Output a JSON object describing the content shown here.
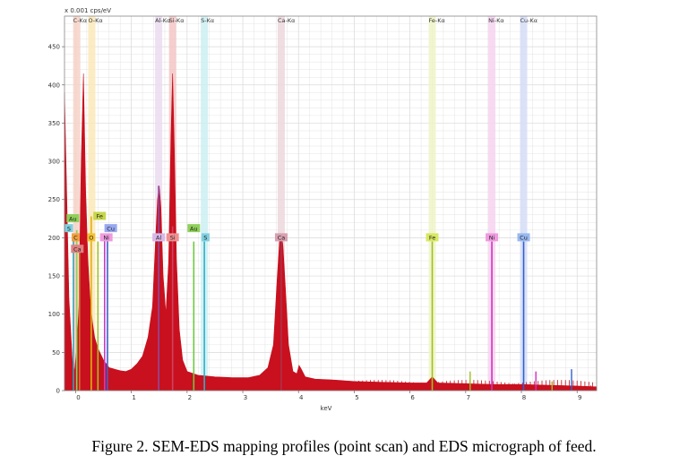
{
  "caption": "Figure 2. SEM-EDS mapping profiles (point scan) and EDS micrograph of feed.",
  "chart_data": {
    "type": "area",
    "y_unit_label": "x 0.001 cps/eV",
    "xlabel": "keV",
    "ylabel": "",
    "xlim": [
      -0.2,
      9.35
    ],
    "ylim": [
      0,
      490
    ],
    "x_ticks": [
      0,
      1,
      2,
      3,
      4,
      5,
      6,
      7,
      8,
      9
    ],
    "y_ticks": [
      0,
      50,
      100,
      150,
      200,
      250,
      300,
      350,
      400,
      450
    ],
    "grid": true,
    "colors": {
      "spectrum": "#c8101e",
      "background": "#ffffff",
      "grid": "#d9d9d9"
    },
    "element_lines": [
      {
        "label": "C-Kα",
        "x": 0.02,
        "color": "#f6d2c8"
      },
      {
        "label": "O-Kα",
        "x": 0.29,
        "color": "#fbe9b8"
      },
      {
        "label": "Al-Kα",
        "x": 1.49,
        "color": "#eadcf0"
      },
      {
        "label": "Si-Kα",
        "x": 1.74,
        "color": "#f3c6c6"
      },
      {
        "label": "S-Kα",
        "x": 2.31,
        "color": "#cdeef2"
      },
      {
        "label": "Ca-Kα",
        "x": 3.69,
        "color": "#ecd7dd"
      },
      {
        "label": "Fe-Kα",
        "x": 6.4,
        "color": "#eef5c8"
      },
      {
        "label": "Ni-Kα",
        "x": 7.47,
        "color": "#f7d2f0"
      },
      {
        "label": "Cu-Kα",
        "x": 8.04,
        "color": "#d5ddf7"
      }
    ],
    "spectrum": {
      "name": "",
      "x": [
        -0.2,
        -0.12,
        -0.06,
        -0.02,
        0.02,
        0.06,
        0.1,
        0.14,
        0.18,
        0.22,
        0.26,
        0.3,
        0.34,
        0.38,
        0.42,
        0.46,
        0.5,
        0.55,
        0.6,
        0.7,
        0.8,
        0.9,
        1.0,
        1.1,
        1.2,
        1.3,
        1.38,
        1.43,
        1.47,
        1.5,
        1.53,
        1.57,
        1.62,
        1.67,
        1.71,
        1.74,
        1.77,
        1.81,
        1.86,
        1.92,
        2.0,
        2.2,
        2.5,
        2.8,
        3.1,
        3.3,
        3.45,
        3.55,
        3.62,
        3.66,
        3.69,
        3.72,
        3.76,
        3.82,
        3.9,
        3.97,
        4.01,
        4.05,
        4.12,
        4.3,
        4.6,
        5.0,
        5.5,
        6.0,
        6.3,
        6.4,
        6.5,
        7.0,
        7.5,
        8.0,
        8.5,
        9.0,
        9.35
      ],
      "y": [
        390,
        120,
        40,
        25,
        55,
        110,
        300,
        415,
        260,
        170,
        120,
        90,
        70,
        60,
        52,
        46,
        40,
        35,
        30,
        28,
        26,
        25,
        28,
        35,
        45,
        70,
        110,
        190,
        250,
        268,
        240,
        150,
        100,
        170,
        330,
        415,
        320,
        170,
        80,
        40,
        25,
        20,
        18,
        17,
        17,
        20,
        30,
        60,
        150,
        195,
        205,
        190,
        140,
        60,
        25,
        22,
        33,
        28,
        18,
        15,
        14,
        12,
        11,
        10,
        10,
        18,
        10,
        9,
        8,
        8,
        7,
        6,
        5
      ]
    },
    "peak_lines": [
      {
        "label": "C",
        "x": 0.02,
        "height": 195,
        "color": "#8bb81c"
      },
      {
        "label": "Au",
        "x": 0.02,
        "height": 210,
        "color": "#8fd05a"
      },
      {
        "label": "S",
        "x": -0.04,
        "height": 200,
        "color": "#36a0b8"
      },
      {
        "label": "Ca",
        "x": 0.07,
        "height": 185,
        "color": "#d07030"
      },
      {
        "label": "O",
        "x": 0.28,
        "height": 228,
        "color": "#e0b010"
      },
      {
        "label": "Fe",
        "x": 0.4,
        "height": 195,
        "color": "#a8c020"
      },
      {
        "label": "Ni",
        "x": 0.52,
        "height": 200,
        "color": "#c040c0"
      },
      {
        "label": "Cu",
        "x": 0.57,
        "height": 205,
        "color": "#4060d0"
      },
      {
        "label": "Al",
        "x": 1.49,
        "height": 268,
        "color": "#8c4aa0"
      },
      {
        "label": "Si",
        "x": 1.74,
        "height": 215,
        "color": "#d04060"
      },
      {
        "label": "Au",
        "x": 2.12,
        "height": 195,
        "color": "#70c840"
      },
      {
        "label": "S",
        "x": 2.31,
        "height": 195,
        "color": "#30b0c8"
      },
      {
        "label": "Ca",
        "x": 3.69,
        "height": 200,
        "color": "#b03048"
      },
      {
        "label": "Fe",
        "x": 6.4,
        "height": 195,
        "color": "#a0c020"
      },
      {
        "label": "Ni",
        "x": 7.47,
        "height": 195,
        "color": "#d030c0"
      },
      {
        "label": "Cu",
        "x": 8.04,
        "height": 195,
        "color": "#3060d0"
      }
    ],
    "peak_labels": [
      {
        "label": "Au",
        "x": -0.05,
        "y": 225,
        "color": "#8fd05a"
      },
      {
        "label": "Fe",
        "x": 0.43,
        "y": 228,
        "color": "#c6d64a"
      },
      {
        "label": "S",
        "x": -0.12,
        "y": 212,
        "color": "#7ed0e0"
      },
      {
        "label": "Cu",
        "x": 0.63,
        "y": 212,
        "color": "#98a8f0"
      },
      {
        "label": "C",
        "x": 0.0,
        "y": 200,
        "color": "#f0a040"
      },
      {
        "label": "O",
        "x": 0.28,
        "y": 200,
        "color": "#f5c030"
      },
      {
        "label": "Ni",
        "x": 0.55,
        "y": 200,
        "color": "#f09ae0"
      },
      {
        "label": "Ca",
        "x": 0.03,
        "y": 185,
        "color": "#e08080"
      },
      {
        "label": "Al",
        "x": 1.49,
        "y": 200,
        "color": "#d8b8e8"
      },
      {
        "label": "Si",
        "x": 1.74,
        "y": 200,
        "color": "#f09090"
      },
      {
        "label": "Au",
        "x": 2.12,
        "y": 212,
        "color": "#8fd05a"
      },
      {
        "label": "S",
        "x": 2.33,
        "y": 200,
        "color": "#7ed0e0"
      },
      {
        "label": "Ca",
        "x": 3.69,
        "y": 200,
        "color": "#d8a0b0"
      },
      {
        "label": "Fe",
        "x": 6.4,
        "y": 200,
        "color": "#d8e860"
      },
      {
        "label": "Ni",
        "x": 7.47,
        "y": 200,
        "color": "#f09ae0"
      },
      {
        "label": "Cu",
        "x": 8.04,
        "y": 200,
        "color": "#98b8f0"
      }
    ],
    "minor_lines": [
      {
        "x": 7.08,
        "height": 25,
        "color": "#a0c020"
      },
      {
        "x": 8.26,
        "height": 25,
        "color": "#d030c0"
      },
      {
        "x": 8.55,
        "height": 12,
        "color": "#a0c020"
      },
      {
        "x": 8.9,
        "height": 28,
        "color": "#3060d0"
      }
    ]
  }
}
